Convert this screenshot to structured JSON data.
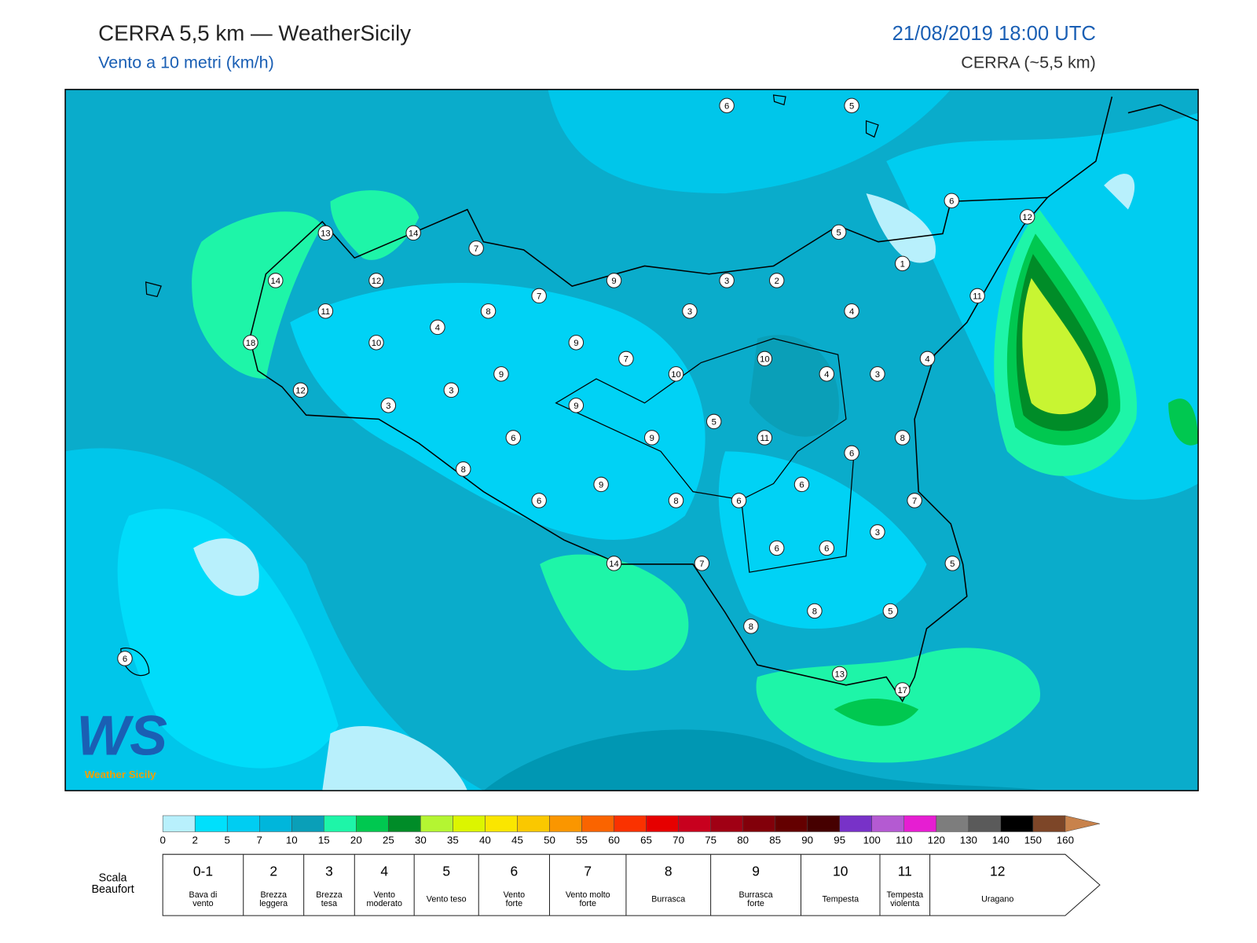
{
  "header": {
    "title": "CERRA 5,5 km — WeatherSicily",
    "subtitle": "Vento a 10 metri (km/h)",
    "datetime": "21/08/2019 18:00 UTC",
    "model": "CERRA (~5,5 km)"
  },
  "map": {
    "stations": [
      6,
      5,
      6,
      12,
      5,
      13,
      14,
      7,
      1,
      14,
      12,
      9,
      3,
      2,
      7,
      11,
      11,
      8,
      3,
      4,
      4,
      18,
      10,
      9,
      10,
      7,
      4,
      9,
      10,
      4,
      3,
      12,
      3,
      3,
      9,
      5,
      6,
      9,
      11,
      8,
      6,
      8,
      9,
      6,
      6,
      8,
      6,
      7,
      3,
      6,
      6,
      14,
      7,
      5,
      8,
      5,
      8,
      6,
      13,
      17
    ]
  },
  "logo": {
    "mark": "WS",
    "text": "Weather Sicily"
  },
  "colorbar": {
    "ticks": [
      0,
      2,
      5,
      7,
      10,
      15,
      20,
      25,
      30,
      35,
      40,
      45,
      50,
      55,
      60,
      65,
      70,
      75,
      80,
      85,
      90,
      95,
      100,
      110,
      120,
      130,
      140,
      150,
      160
    ],
    "colors": [
      "#b8f0fc",
      "#00e0fc",
      "#00cdf2",
      "#00b6db",
      "#0a9fb8",
      "#1ef5a8",
      "#00c850",
      "#008c28",
      "#b4f532",
      "#dcf500",
      "#fae600",
      "#fac800",
      "#fa9600",
      "#fa6400",
      "#fa3200",
      "#e60000",
      "#c8001e",
      "#a00014",
      "#82000a",
      "#640000",
      "#460000",
      "#7832c8",
      "#b45ad2",
      "#e61ed2",
      "#7d7d7d",
      "#5a5a5a",
      "#000000",
      "#7d4628",
      "#c8824b"
    ]
  },
  "beaufort": {
    "label": [
      "Scala",
      "Beaufort"
    ],
    "classes": [
      {
        "force": "0-1",
        "name": [
          "Bava di",
          "vento"
        ]
      },
      {
        "force": "2",
        "name": [
          "Brezza",
          "leggera"
        ]
      },
      {
        "force": "3",
        "name": [
          "Brezza",
          "tesa"
        ]
      },
      {
        "force": "4",
        "name": [
          "Vento",
          "moderato"
        ]
      },
      {
        "force": "5",
        "name": [
          "Vento teso"
        ]
      },
      {
        "force": "6",
        "name": [
          "Vento",
          "forte"
        ]
      },
      {
        "force": "7",
        "name": [
          "Vento molto",
          "forte"
        ]
      },
      {
        "force": "8",
        "name": [
          "Burrasca"
        ]
      },
      {
        "force": "9",
        "name": [
          "Burrasca",
          "forte"
        ]
      },
      {
        "force": "10",
        "name": [
          "Tempesta"
        ]
      },
      {
        "force": "11",
        "name": [
          "Tempesta",
          "violenta"
        ]
      },
      {
        "force": "12",
        "name": [
          "Uragano"
        ]
      }
    ]
  }
}
